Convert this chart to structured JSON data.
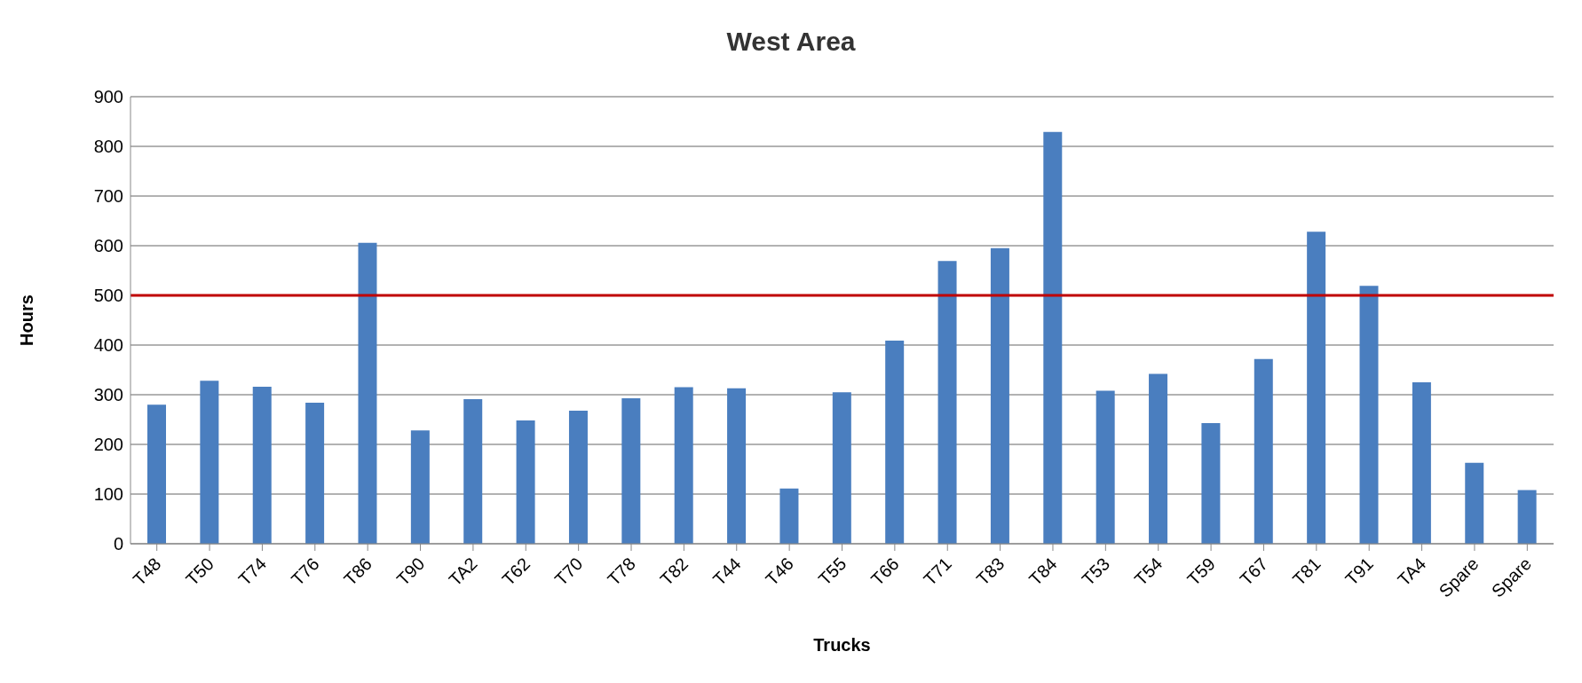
{
  "chart_data": {
    "type": "bar",
    "title": "West Area",
    "xlabel": "Trucks",
    "ylabel": "Hours",
    "categories": [
      "T48",
      "T50",
      "T74",
      "T76",
      "T86",
      "T90",
      "TA2",
      "T62",
      "T70",
      "T78",
      "T82",
      "T44",
      "T46",
      "T55",
      "T66",
      "T71",
      "T83",
      "T84",
      "T53",
      "T54",
      "T59",
      "T67",
      "T81",
      "T91",
      "TA4",
      "Spare",
      "Spare"
    ],
    "values": [
      280,
      328,
      316,
      284,
      606,
      228,
      291,
      248,
      268,
      293,
      315,
      313,
      111,
      305,
      409,
      569,
      595,
      829,
      308,
      342,
      243,
      372,
      628,
      519,
      325,
      163,
      108
    ],
    "color": "#4a7ebf",
    "ylim": [
      0,
      900
    ],
    "yticks": [
      0,
      100,
      200,
      300,
      400,
      500,
      600,
      700,
      800,
      900
    ],
    "grid": "y",
    "ref_lines": [
      {
        "axis": "y",
        "value": 500,
        "color": "#c00000"
      }
    ]
  }
}
